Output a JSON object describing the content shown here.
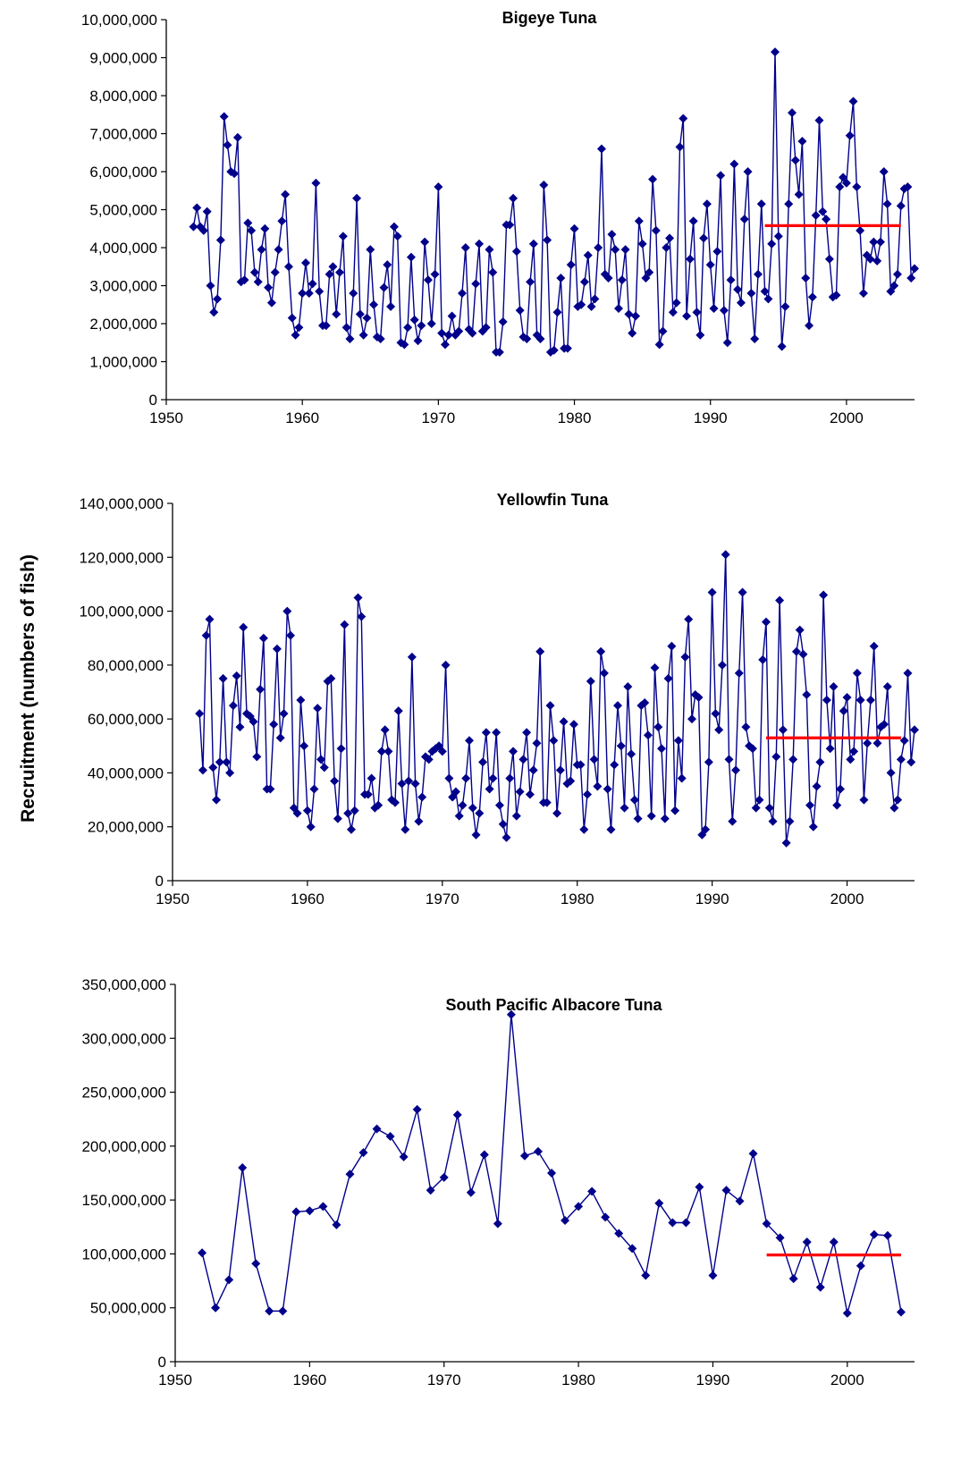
{
  "shared_ylabel": "Recruitment (numbers of fish)",
  "colors": {
    "series": "#00008B",
    "reference": "#FF0000",
    "axis": "#000000"
  },
  "chart_data": [
    {
      "type": "line",
      "title": "Bigeye Tuna",
      "xlim": [
        1950,
        2005
      ],
      "ylim": [
        0,
        10000000
      ],
      "xticks": [
        1950,
        1960,
        1970,
        1980,
        1990,
        2000
      ],
      "xtick_labels": [
        "1950",
        "1960",
        "1970",
        "1980",
        "1990",
        "2000"
      ],
      "yticks": [
        0,
        1000000,
        2000000,
        3000000,
        4000000,
        5000000,
        6000000,
        7000000,
        8000000,
        9000000,
        10000000
      ],
      "ytick_labels": [
        "0",
        "1,000,000",
        "2,000,000",
        "3,000,000",
        "4,000,000",
        "5,000,000",
        "6,000,000",
        "7,000,000",
        "8,000,000",
        "9,000,000",
        "10,000,000"
      ],
      "grid": false,
      "marker": "diamond",
      "series": [
        {
          "x_start": 1952,
          "x_step": 0.25,
          "values": [
            4550000,
            5050000,
            4550000,
            4450000,
            4950000,
            3000000,
            2300000,
            2650000,
            4200000,
            7450000,
            6700000,
            6000000,
            5950000,
            6900000,
            3100000,
            3150000,
            4650000,
            4450000,
            3350000,
            3100000,
            3950000,
            4500000,
            2950000,
            2550000,
            3350000,
            3950000,
            4700000,
            5400000,
            3500000,
            2150000,
            1700000,
            1900000,
            2800000,
            3600000,
            2800000,
            3050000,
            5700000,
            2850000,
            1950000,
            1950000,
            3300000,
            3500000,
            2250000,
            3350000,
            4300000,
            1900000,
            1600000,
            2800000,
            5300000,
            2250000,
            1700000,
            2150000,
            3950000,
            2500000,
            1650000,
            1600000,
            2950000,
            3550000,
            2450000,
            4550000,
            4300000,
            1500000,
            1450000,
            1900000,
            3750000,
            2100000,
            1550000,
            1950000,
            4150000,
            3150000,
            2000000,
            3300000,
            5600000,
            1750000,
            1450000,
            1700000,
            2200000,
            1700000,
            1800000,
            2800000,
            4000000,
            1850000,
            1750000,
            3050000,
            4100000,
            1800000,
            1900000,
            3950000,
            3350000,
            1250000,
            1250000,
            2050000,
            4600000,
            4600000,
            5300000,
            3900000,
            2350000,
            1650000,
            1600000,
            3100000,
            4100000,
            1700000,
            1600000,
            5650000,
            4200000,
            1250000,
            1300000,
            2300000,
            3200000,
            1350000,
            1350000,
            3550000,
            4500000,
            2450000,
            2500000,
            3100000,
            3800000,
            2450000,
            2650000,
            4000000,
            6600000,
            3300000,
            3200000,
            4350000,
            3950000,
            2400000,
            3150000,
            3950000,
            2250000,
            1750000,
            2200000,
            4700000,
            4100000,
            3200000,
            3350000,
            5800000,
            4450000,
            1450000,
            1800000,
            4000000,
            4250000,
            2300000,
            2550000,
            6650000,
            7400000,
            2200000,
            3700000,
            4700000,
            2300000,
            1700000,
            4250000,
            5150000,
            3550000,
            2400000,
            3900000,
            5900000,
            2350000,
            1500000,
            3150000,
            6200000,
            2900000,
            2550000,
            4750000,
            6000000,
            2800000,
            1600000,
            3300000,
            5150000,
            2850000,
            2650000,
            4100000,
            9150000,
            4300000,
            1400000,
            2450000,
            5150000,
            7550000,
            6300000,
            5400000,
            6800000,
            3200000,
            1950000,
            2700000,
            4850000,
            7350000,
            4950000,
            4750000,
            3700000,
            2700000,
            2750000,
            5600000,
            5850000,
            5700000,
            6950000,
            7850000,
            5600000,
            4450000,
            2800000,
            3800000,
            3700000,
            4150000,
            3650000,
            4150000,
            6000000,
            5150000,
            2850000,
            3000000,
            3300000,
            5100000,
            5550000,
            5600000,
            3200000,
            3450000
          ]
        }
      ],
      "reference_line": {
        "x": [
          1994,
          2004
        ],
        "y": 4580000
      }
    },
    {
      "type": "line",
      "title": "Yellowfin Tuna",
      "xlim": [
        1950,
        2005
      ],
      "ylim": [
        0,
        140000000
      ],
      "xticks": [
        1950,
        1960,
        1970,
        1980,
        1990,
        2000
      ],
      "xtick_labels": [
        "1950",
        "1960",
        "1970",
        "1980",
        "1990",
        "2000"
      ],
      "yticks": [
        0,
        20000000,
        40000000,
        60000000,
        80000000,
        100000000,
        120000000,
        140000000
      ],
      "ytick_labels": [
        "0",
        "20,000,000",
        "40,000,000",
        "60,000,000",
        "80,000,000",
        "100,000,000",
        "120,000,000",
        "140,000,000"
      ],
      "grid": false,
      "marker": "diamond",
      "series": [
        {
          "x_start": 1952,
          "x_step": 0.25,
          "values": [
            62000000,
            41000000,
            91000000,
            97000000,
            42000000,
            30000000,
            44000000,
            75000000,
            44000000,
            40000000,
            65000000,
            76000000,
            57000000,
            94000000,
            62000000,
            61000000,
            59000000,
            46000000,
            71000000,
            90000000,
            34000000,
            34000000,
            58000000,
            86000000,
            53000000,
            62000000,
            100000000,
            91000000,
            27000000,
            25000000,
            67000000,
            50000000,
            26000000,
            20000000,
            34000000,
            64000000,
            45000000,
            42000000,
            74000000,
            75000000,
            37000000,
            23000000,
            49000000,
            95000000,
            25000000,
            19000000,
            26000000,
            105000000,
            98000000,
            32000000,
            32000000,
            38000000,
            27000000,
            28000000,
            48000000,
            56000000,
            48000000,
            30000000,
            29000000,
            63000000,
            36000000,
            19000000,
            37000000,
            83000000,
            36000000,
            22000000,
            31000000,
            46000000,
            45000000,
            48000000,
            49000000,
            50000000,
            48000000,
            80000000,
            38000000,
            31000000,
            33000000,
            24000000,
            28000000,
            38000000,
            52000000,
            27000000,
            17000000,
            25000000,
            44000000,
            55000000,
            34000000,
            38000000,
            55000000,
            28000000,
            21000000,
            16000000,
            38000000,
            48000000,
            24000000,
            33000000,
            45000000,
            55000000,
            32000000,
            41000000,
            51000000,
            85000000,
            29000000,
            29000000,
            65000000,
            52000000,
            25000000,
            41000000,
            59000000,
            36000000,
            37000000,
            58000000,
            43000000,
            43000000,
            19000000,
            32000000,
            74000000,
            45000000,
            35000000,
            85000000,
            77000000,
            34000000,
            19000000,
            43000000,
            65000000,
            50000000,
            27000000,
            72000000,
            47000000,
            30000000,
            23000000,
            65000000,
            66000000,
            54000000,
            24000000,
            79000000,
            57000000,
            49000000,
            23000000,
            75000000,
            87000000,
            26000000,
            52000000,
            38000000,
            83000000,
            97000000,
            60000000,
            69000000,
            68000000,
            17000000,
            19000000,
            44000000,
            107000000,
            62000000,
            56000000,
            80000000,
            121000000,
            45000000,
            22000000,
            41000000,
            77000000,
            107000000,
            57000000,
            50000000,
            49000000,
            27000000,
            30000000,
            82000000,
            96000000,
            27000000,
            22000000,
            46000000,
            104000000,
            56000000,
            14000000,
            22000000,
            45000000,
            85000000,
            93000000,
            84000000,
            69000000,
            28000000,
            20000000,
            35000000,
            44000000,
            106000000,
            67000000,
            49000000,
            72000000,
            28000000,
            34000000,
            63000000,
            68000000,
            45000000,
            48000000,
            77000000,
            67000000,
            30000000,
            51000000,
            67000000,
            87000000,
            51000000,
            57000000,
            58000000,
            72000000,
            40000000,
            27000000,
            30000000,
            45000000,
            52000000,
            77000000,
            44000000,
            56000000
          ]
        }
      ],
      "reference_line": {
        "x": [
          1994,
          2004
        ],
        "y": 53000000
      }
    },
    {
      "type": "line",
      "title": "South Pacific Albacore Tuna",
      "xlim": [
        1950,
        2005
      ],
      "ylim": [
        0,
        350000000
      ],
      "xticks": [
        1950,
        1960,
        1970,
        1980,
        1990,
        2000
      ],
      "xtick_labels": [
        "1950",
        "1960",
        "1970",
        "1980",
        "1990",
        "2000"
      ],
      "yticks": [
        0,
        50000000,
        100000000,
        150000000,
        200000000,
        250000000,
        300000000,
        350000000
      ],
      "ytick_labels": [
        "0",
        "50,000,000",
        "100,000,000",
        "150,000,000",
        "200,000,000",
        "250,000,000",
        "300,000,000",
        "350,000,000"
      ],
      "grid": false,
      "marker": "diamond",
      "series": [
        {
          "x_start": 1952,
          "x_step": 1,
          "values": [
            101000000,
            50000000,
            76000000,
            180000000,
            91000000,
            47000000,
            47000000,
            139000000,
            140000000,
            144000000,
            127000000,
            174000000,
            194000000,
            216000000,
            209000000,
            190000000,
            234000000,
            159000000,
            171000000,
            229000000,
            157000000,
            192000000,
            128000000,
            322000000,
            191000000,
            195000000,
            175000000,
            131000000,
            144000000,
            158000000,
            134000000,
            119000000,
            105000000,
            80000000,
            147000000,
            129000000,
            129000000,
            162000000,
            80000000,
            159000000,
            149000000,
            193000000,
            128000000,
            115000000,
            77000000,
            111000000,
            69000000,
            111000000,
            45000000,
            89000000,
            118000000,
            117000000,
            46000000
          ]
        }
      ],
      "reference_line": {
        "x": [
          1994,
          2004
        ],
        "y": 99000000
      }
    }
  ]
}
